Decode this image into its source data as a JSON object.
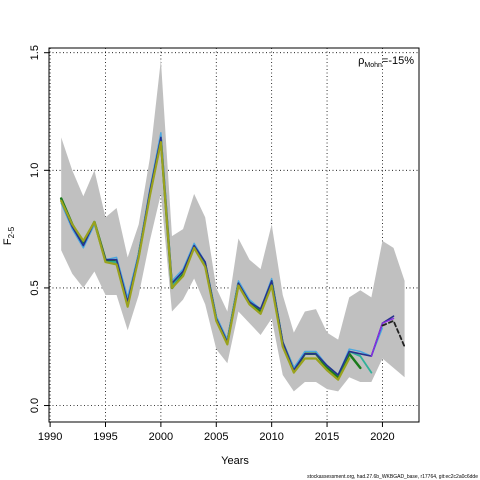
{
  "chart_data": {
    "type": "line",
    "title": "",
    "xlabel": "Years",
    "ylabel_main": "F",
    "ylabel_sub": "2-5",
    "xlim": [
      1989.9,
      2023.3
    ],
    "ylim": [
      -0.07,
      1.52
    ],
    "xticks": [
      1990,
      1995,
      2000,
      2005,
      2010,
      2015,
      2020
    ],
    "yticks": [
      0.0,
      0.5,
      1.0,
      1.5
    ],
    "ytick_labels": [
      "0.0",
      "0.5",
      "1.0",
      "1.5"
    ],
    "grid": true,
    "annotation_rho": "ρ",
    "annotation_rho_sub": "Mohn",
    "annotation_value": "=-15%",
    "footer": "stockassessment.org, had.27.6b_WKBGAD_base, r17764, git:ec2c2a0c6dde",
    "band": {
      "x": [
        1991,
        1992,
        1993,
        1994,
        1995,
        1996,
        1997,
        1998,
        1999,
        2000,
        2001,
        2002,
        2003,
        2004,
        2005,
        2006,
        2007,
        2008,
        2009,
        2010,
        2011,
        2012,
        2013,
        2014,
        2015,
        2016,
        2017,
        2018,
        2019,
        2020,
        2021,
        2022
      ],
      "upper": [
        1.14,
        1.0,
        0.89,
        1.0,
        0.8,
        0.84,
        0.63,
        0.77,
        1.05,
        1.47,
        0.72,
        0.75,
        0.9,
        0.8,
        0.5,
        0.4,
        0.71,
        0.62,
        0.58,
        0.77,
        0.47,
        0.31,
        0.4,
        0.41,
        0.31,
        0.28,
        0.46,
        0.49,
        0.46,
        0.7,
        0.67,
        0.53
      ],
      "lower": [
        0.66,
        0.56,
        0.5,
        0.57,
        0.47,
        0.47,
        0.32,
        0.47,
        0.7,
        0.9,
        0.4,
        0.45,
        0.54,
        0.43,
        0.24,
        0.18,
        0.4,
        0.35,
        0.3,
        0.37,
        0.13,
        0.06,
        0.1,
        0.1,
        0.07,
        0.06,
        0.12,
        0.1,
        0.1,
        0.2,
        0.16,
        0.12
      ]
    },
    "series": [
      {
        "color": "#1a7a1a",
        "width": 2.5,
        "dash": "",
        "x": [
          1991,
          1992,
          1993,
          1994,
          1995,
          1996,
          1997,
          1998,
          1999,
          2000,
          2001,
          2002,
          2003,
          2004,
          2005,
          2006,
          2007,
          2008,
          2009,
          2010,
          2011,
          2012,
          2013,
          2014,
          2015,
          2016,
          2017,
          2018
        ],
        "values": [
          0.88,
          0.77,
          0.69,
          0.78,
          0.62,
          0.61,
          0.43,
          0.64,
          0.9,
          1.13,
          0.5,
          0.56,
          0.68,
          0.6,
          0.37,
          0.27,
          0.52,
          0.44,
          0.4,
          0.53,
          0.26,
          0.15,
          0.22,
          0.22,
          0.16,
          0.12,
          0.22,
          0.16
        ]
      },
      {
        "color": "#2fb09a",
        "width": 1.8,
        "dash": "",
        "x": [
          1991,
          1992,
          1993,
          1994,
          1995,
          1996,
          1997,
          1998,
          1999,
          2000,
          2001,
          2002,
          2003,
          2004,
          2005,
          2006,
          2007,
          2008,
          2009,
          2010,
          2011,
          2012,
          2013,
          2014,
          2015,
          2016,
          2017,
          2018,
          2019
        ],
        "values": [
          0.87,
          0.76,
          0.68,
          0.78,
          0.61,
          0.61,
          0.43,
          0.64,
          0.9,
          1.13,
          0.51,
          0.57,
          0.68,
          0.6,
          0.37,
          0.27,
          0.52,
          0.44,
          0.41,
          0.53,
          0.27,
          0.16,
          0.22,
          0.22,
          0.17,
          0.13,
          0.23,
          0.21,
          0.14
        ]
      },
      {
        "color": "#4aa8e0",
        "width": 1.4,
        "dash": "",
        "x": [
          1991,
          1992,
          1993,
          1994,
          1995,
          1996,
          1997,
          1998,
          1999,
          2000,
          2001,
          2002,
          2003,
          2004,
          2005,
          2006,
          2007,
          2008,
          2009,
          2010,
          2011,
          2012,
          2013,
          2014,
          2015,
          2016,
          2017,
          2018,
          2019,
          2020
        ],
        "values": [
          0.86,
          0.75,
          0.67,
          0.77,
          0.62,
          0.63,
          0.46,
          0.65,
          0.92,
          1.16,
          0.53,
          0.58,
          0.69,
          0.61,
          0.38,
          0.28,
          0.53,
          0.45,
          0.41,
          0.54,
          0.27,
          0.16,
          0.23,
          0.23,
          0.17,
          0.13,
          0.24,
          0.23,
          0.21,
          0.33
        ]
      },
      {
        "color": "#27308c",
        "width": 1.6,
        "dash": "",
        "x": [
          1991,
          1992,
          1993,
          1994,
          1995,
          1996,
          1997,
          1998,
          1999,
          2000,
          2001,
          2002,
          2003,
          2004,
          2005,
          2006,
          2007,
          2008,
          2009,
          2010,
          2011,
          2012,
          2013,
          2014,
          2015,
          2016,
          2017,
          2018,
          2019,
          2020,
          2021
        ],
        "values": [
          0.87,
          0.76,
          0.68,
          0.78,
          0.62,
          0.62,
          0.44,
          0.64,
          0.91,
          1.14,
          0.52,
          0.57,
          0.68,
          0.61,
          0.37,
          0.27,
          0.52,
          0.44,
          0.41,
          0.53,
          0.27,
          0.15,
          0.22,
          0.22,
          0.17,
          0.13,
          0.23,
          0.22,
          0.21,
          0.35,
          0.38
        ]
      },
      {
        "color": "#8a2be2",
        "width": 1.4,
        "dash": "",
        "x": [
          2019,
          2020,
          2021
        ],
        "values": [
          0.21,
          0.35,
          0.37
        ]
      },
      {
        "color": "#9aa21e",
        "width": 2.2,
        "dash": "",
        "x": [
          1991,
          1992,
          1993,
          1994,
          1995,
          1996,
          1997,
          1998,
          1999,
          2000,
          2001,
          2002,
          2003,
          2004,
          2005,
          2006,
          2007,
          2008,
          2009,
          2010,
          2011,
          2012,
          2013,
          2014,
          2015,
          2016,
          2017
        ],
        "values": [
          0.87,
          0.77,
          0.7,
          0.78,
          0.61,
          0.6,
          0.42,
          0.63,
          0.89,
          1.12,
          0.5,
          0.55,
          0.67,
          0.59,
          0.36,
          0.26,
          0.51,
          0.43,
          0.39,
          0.51,
          0.25,
          0.14,
          0.2,
          0.2,
          0.15,
          0.11,
          0.2
        ]
      },
      {
        "color": "#222222",
        "width": 1.8,
        "dash": "4,3",
        "x": [
          2020,
          2021,
          2022
        ],
        "values": [
          0.34,
          0.36,
          0.25
        ]
      }
    ]
  }
}
